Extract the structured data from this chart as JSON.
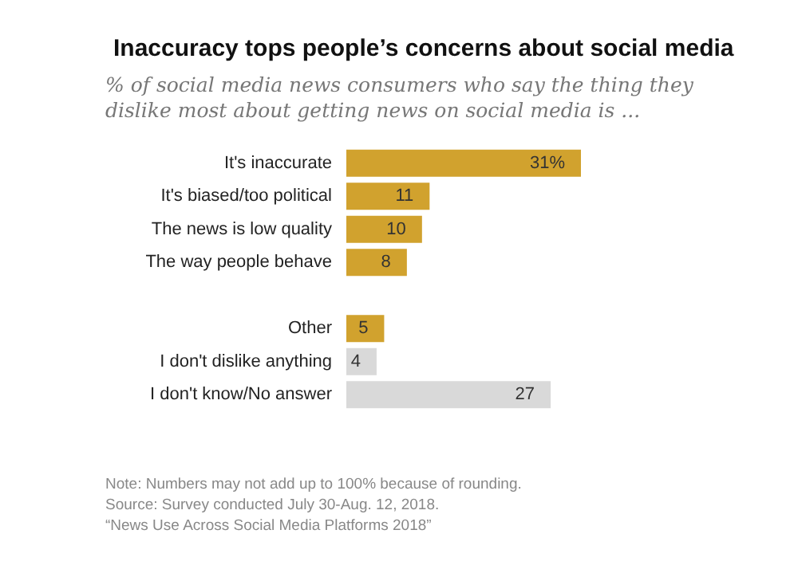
{
  "chart_data": {
    "type": "bar",
    "orientation": "horizontal",
    "title": "Inaccuracy tops people’s concerns about social media",
    "subtitle": "% of social media news consumers who say the thing they dislike most about getting news on social media is ...",
    "categories": [
      "It's inaccurate",
      "It's biased/too political",
      "The news is low quality",
      "The way people behave",
      null,
      "Other",
      "I don't dislike anything",
      "I don't know/No answer"
    ],
    "values": [
      31,
      11,
      10,
      8,
      null,
      5,
      4,
      27
    ],
    "colors": [
      "#d1a22e",
      "#d1a22e",
      "#d1a22e",
      "#d1a22e",
      "#d1a22e",
      "#d1a22e",
      "#d9d9d9",
      "#d9d9d9"
    ],
    "value_labels": [
      "31%",
      "11",
      "10",
      "8",
      null,
      "5",
      "4",
      "27"
    ],
    "annotations": [
      "Note: Numbers may not add up to 100% because of rounding.",
      "Source: Survey conducted July 30-Aug. 12, 2018.",
      "“News Use Across Social Media Platforms 2018”"
    ]
  }
}
